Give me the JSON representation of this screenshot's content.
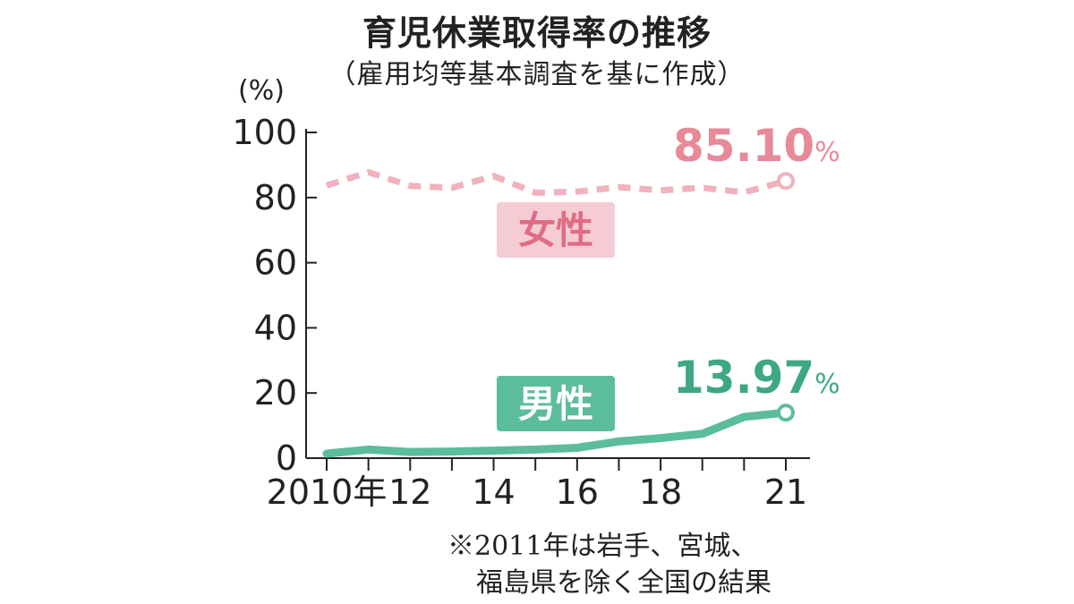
{
  "chart_data": {
    "type": "line",
    "title": "育児休業取得率の推移",
    "subtitle": "（雇用均等基本調査を基に作成）",
    "ylabel": "(%)",
    "ylim": [
      0,
      100
    ],
    "yticks": [
      0,
      20,
      40,
      60,
      80,
      100
    ],
    "x": [
      2010,
      2011,
      2012,
      2013,
      2014,
      2015,
      2016,
      2017,
      2018,
      2019,
      2020,
      2021
    ],
    "xticks": [
      {
        "x": 2010,
        "label": "2010年"
      },
      {
        "x": 2012,
        "label": "12"
      },
      {
        "x": 2014,
        "label": "14"
      },
      {
        "x": 2016,
        "label": "16"
      },
      {
        "x": 2018,
        "label": "18"
      },
      {
        "x": 2021,
        "label": "21"
      }
    ],
    "series": [
      {
        "name": "女性",
        "color": "#f0b2bd",
        "label_color": "#e8899a",
        "style": "dashed",
        "values": [
          83.7,
          87.8,
          83.6,
          83.0,
          86.6,
          81.5,
          81.8,
          83.2,
          82.2,
          83.0,
          81.6,
          85.1
        ],
        "end_label": "85.10",
        "end_unit": "%"
      },
      {
        "name": "男性",
        "color": "#5bbd9b",
        "label_color": "#3ea882",
        "style": "solid",
        "values": [
          1.38,
          2.63,
          1.89,
          2.03,
          2.3,
          2.65,
          3.16,
          5.14,
          6.16,
          7.48,
          12.65,
          13.97
        ],
        "end_label": "13.97",
        "end_unit": "%"
      }
    ],
    "note": [
      "※2011年は岩手、宮城、",
      "福島県を除く全国の結果"
    ],
    "grid": false
  }
}
